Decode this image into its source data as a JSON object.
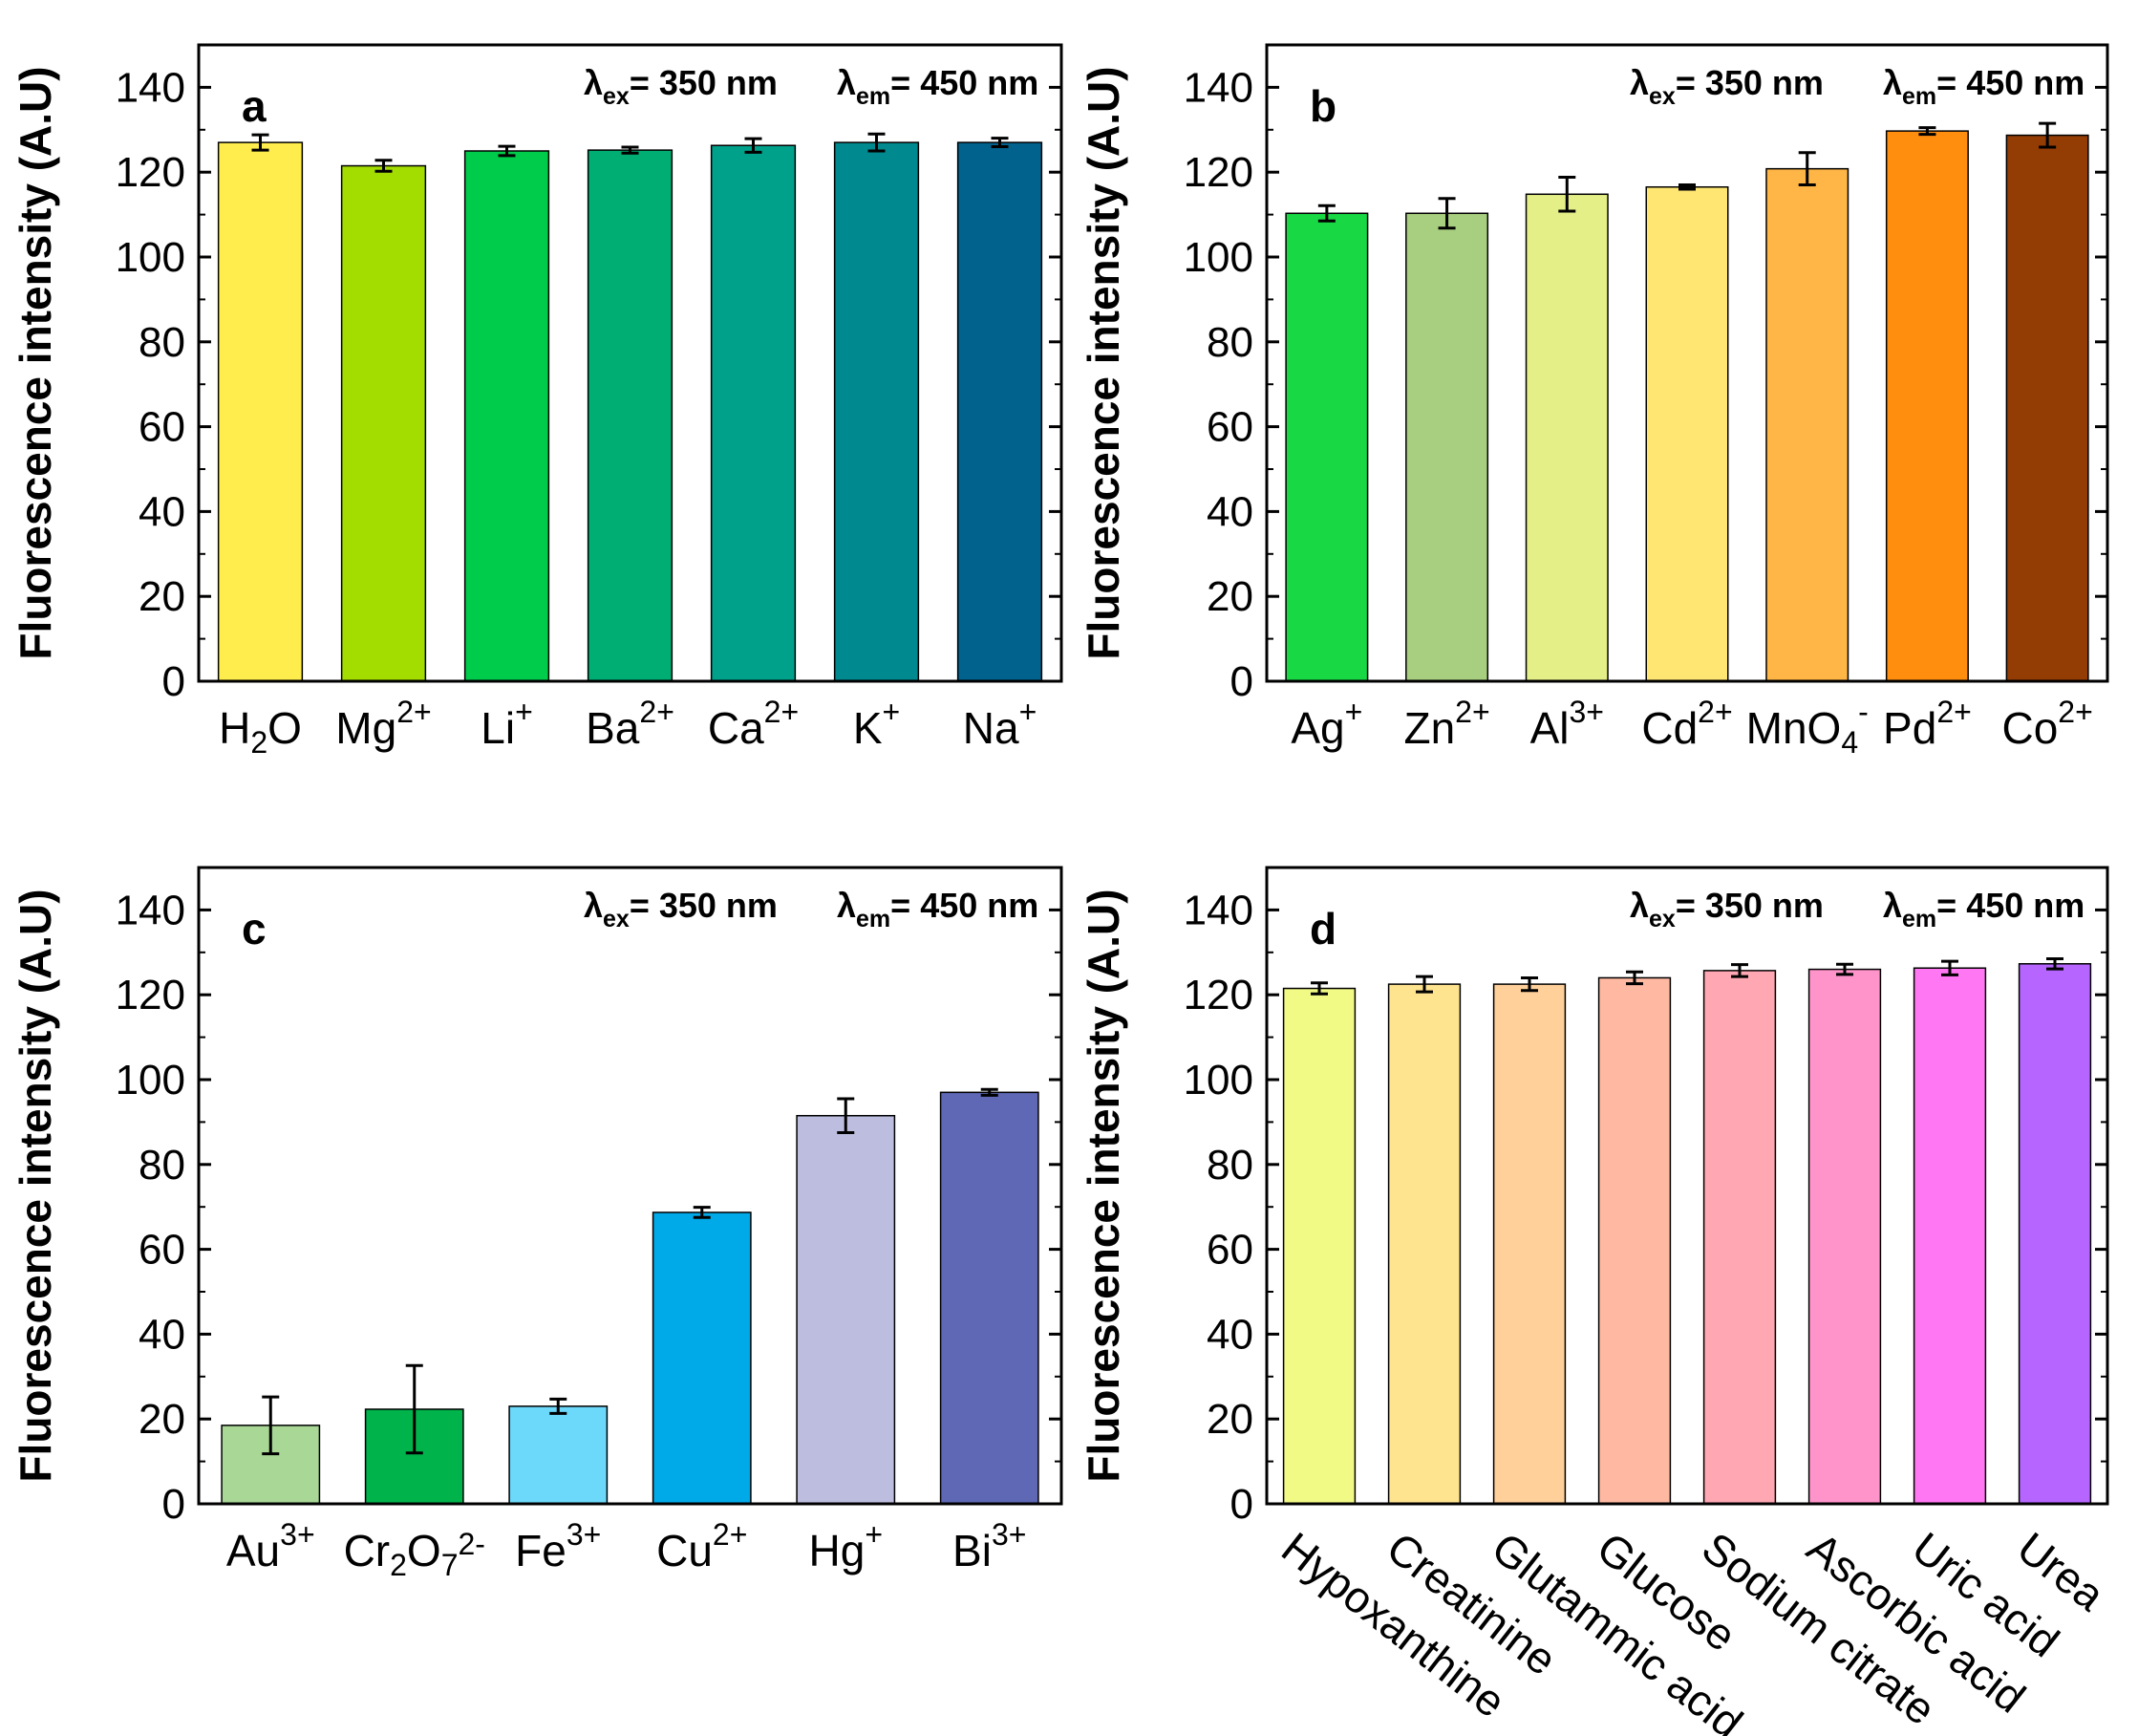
{
  "figure": {
    "ylabel": "Fluorescence intensity (A.U)"
  },
  "chart_data": [
    {
      "panel": "a",
      "type": "bar",
      "ylabel": "Fluorescence intensity (A.U)",
      "ylim": [
        0,
        150
      ],
      "yticks": [
        0,
        20,
        40,
        60,
        80,
        100,
        120,
        140
      ],
      "annotations": {
        "ex": "= 350 nm",
        "em": "= 450 nm"
      },
      "categories": [
        {
          "base": "H",
          "sub": "2",
          "rest": "O",
          "sup": ""
        },
        {
          "base": "Mg",
          "sup": "2+"
        },
        {
          "base": "Li",
          "sup": "+"
        },
        {
          "base": "Ba",
          "sup": "2+"
        },
        {
          "base": "Ca",
          "sup": "2+"
        },
        {
          "base": "K",
          "sup": "+"
        },
        {
          "base": "Na",
          "sup": "+"
        }
      ],
      "values": [
        127,
        121.5,
        125,
        125.2,
        126.3,
        127,
        127
      ],
      "errors": [
        1.8,
        1.3,
        1.1,
        0.7,
        1.6,
        2.0,
        1.0
      ],
      "colors": [
        "#FFED4D",
        "#A3DD00",
        "#00CC4B",
        "#00AD73",
        "#00A18A",
        "#00898E",
        "#00628D"
      ]
    },
    {
      "panel": "b",
      "type": "bar",
      "ylabel": "Fluorescence intensity (A.U)",
      "ylim": [
        0,
        150
      ],
      "yticks": [
        0,
        20,
        40,
        60,
        80,
        100,
        120,
        140
      ],
      "annotations": {
        "ex": "= 350 nm",
        "em": "= 450 nm"
      },
      "categories": [
        {
          "base": "Ag",
          "sup": "+"
        },
        {
          "base": "Zn",
          "sup": "2+"
        },
        {
          "base": "Al",
          "sup": "3+"
        },
        {
          "base": "Cd",
          "sup": "2+"
        },
        {
          "base": "MnO",
          "sub": "4",
          "sup": "-"
        },
        {
          "base": "Pd",
          "sup": "2+"
        },
        {
          "base": "Co",
          "sup": "2+"
        }
      ],
      "values": [
        110.3,
        110.3,
        114.8,
        116.5,
        120.8,
        129.7,
        128.7
      ],
      "errors": [
        1.8,
        3.5,
        4.0,
        0.5,
        3.8,
        0.8,
        2.8
      ],
      "colors": [
        "#18D844",
        "#A8CF7F",
        "#E5EF87",
        "#FFE672",
        "#FFB646",
        "#FF8E0F",
        "#933C04"
      ]
    },
    {
      "panel": "c",
      "type": "bar",
      "ylabel": "Fluorescence intensity (A.U)",
      "ylim": [
        0,
        150
      ],
      "yticks": [
        0,
        20,
        40,
        60,
        80,
        100,
        120,
        140
      ],
      "annotations": {
        "ex": "= 350 nm",
        "em": "= 450 nm"
      },
      "categories": [
        {
          "base": "Au",
          "sup": "3+"
        },
        {
          "base": "Cr",
          "sub": "2",
          "base2": "O",
          "sub2": "7",
          "sup": "2-"
        },
        {
          "base": "Fe",
          "sup": "3+"
        },
        {
          "base": "Cu",
          "sup": "2+"
        },
        {
          "base": "Hg",
          "sup": "+"
        },
        {
          "base": "Bi",
          "sup": "3+"
        }
      ],
      "values": [
        18.5,
        22.3,
        23,
        68.7,
        91.5,
        97
      ],
      "errors": [
        6.7,
        10.3,
        1.7,
        1.2,
        4.0,
        0.7
      ],
      "colors": [
        "#A8D796",
        "#00B44B",
        "#6CD8FA",
        "#00A9E8",
        "#BDBDE0",
        "#5E68B5"
      ]
    },
    {
      "panel": "d",
      "type": "bar",
      "ylabel": "Fluorescence intensity (A.U)",
      "ylim": [
        0,
        150
      ],
      "yticks": [
        0,
        20,
        40,
        60,
        80,
        100,
        120,
        140
      ],
      "annotations": {
        "ex": "= 350 nm",
        "em": "= 450 nm"
      },
      "categories": [
        {
          "base": "Hypoxanthine"
        },
        {
          "base": "Creatinine"
        },
        {
          "base": "Glutammic acid"
        },
        {
          "base": "Glucose"
        },
        {
          "base": "Sodium citrate"
        },
        {
          "base": "Ascorbic acid"
        },
        {
          "base": "Uric acid"
        },
        {
          "base": "Urea"
        }
      ],
      "rotate_labels": true,
      "values": [
        121.5,
        122.5,
        122.5,
        124,
        125.7,
        126,
        126.3,
        127.3
      ],
      "errors": [
        1.3,
        1.8,
        1.5,
        1.4,
        1.4,
        1.2,
        1.6,
        1.2
      ],
      "colors": [
        "#F2FA86",
        "#FFE490",
        "#FFD09A",
        "#FFB9A2",
        "#FFA7B3",
        "#FF94CB",
        "#FF77F3",
        "#B665FF"
      ]
    }
  ]
}
